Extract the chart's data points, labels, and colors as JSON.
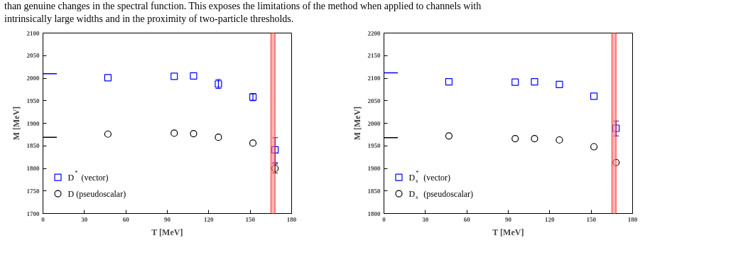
{
  "chart_data": [
    {
      "type": "scatter",
      "annotations": [
        "than genuine changes in the spectral function. This exposes the limitations of the method when applied to channels with",
        "intrinsically large widths and in the proximity of two-particle thresholds."
      ],
      "xlabel": "T [MeV]",
      "ylabel": "M [MeV]",
      "xlim": [
        0,
        180
      ],
      "ylim": [
        1700,
        2100
      ],
      "xticks": [
        0,
        30,
        60,
        90,
        120,
        150,
        180
      ],
      "yticks": [
        1700,
        1750,
        1800,
        1850,
        1900,
        1950,
        2000,
        2050,
        2100
      ],
      "grid": false,
      "legend": "bottom left",
      "bands": [
        {
          "axis": "x",
          "from": 165,
          "to": 168,
          "color": "#ff8080"
        }
      ],
      "series": [
        {
          "name": "D$^{*}$ (vector)",
          "type": "scatter",
          "marker": "square",
          "color": "#0000ff",
          "x": [
            47,
            95,
            109,
            127,
            152,
            168
          ],
          "values": [
            2001,
            2004,
            2005,
            1987,
            1958,
            1841
          ],
          "errors": [
            null,
            null,
            null,
            10,
            8,
            [
              1813,
              1868
            ]
          ]
        },
        {
          "name": "D (pseudoscalar)",
          "type": "scatter",
          "marker": "circle",
          "color": "#000000",
          "x": [
            47,
            95,
            109,
            127,
            152,
            168
          ],
          "values": [
            1876,
            1878,
            1877,
            1869,
            1856,
            1800
          ],
          "errors": [
            null,
            null,
            null,
            null,
            null,
            10
          ]
        },
        {
          "type": "line",
          "color": "#0000ff",
          "x": [
            0,
            10
          ],
          "values": [
            2010,
            2010
          ]
        },
        {
          "type": "line",
          "color": "#000000",
          "x": [
            0,
            10
          ],
          "values": [
            1869,
            1869
          ]
        }
      ]
    },
    {
      "type": "scatter",
      "xlabel": "T [MeV]",
      "ylabel": "M [MeV]",
      "xlim": [
        0,
        180
      ],
      "ylim": [
        1800,
        2200
      ],
      "xticks": [
        0,
        30,
        60,
        90,
        120,
        150,
        180
      ],
      "yticks": [
        1800,
        1850,
        1900,
        1950,
        2000,
        2050,
        2100,
        2150,
        2200
      ],
      "grid": false,
      "legend": "bottom left",
      "bands": [
        {
          "axis": "x",
          "from": 165,
          "to": 168,
          "color": "#ff8080"
        }
      ],
      "series": [
        {
          "name": "D$_{s}$$^{*}$ (vector)",
          "type": "scatter",
          "marker": "square",
          "color": "#0000ff",
          "x": [
            47,
            95,
            109,
            127,
            152,
            168
          ],
          "values": [
            2092,
            2091,
            2092,
            2086,
            2060,
            1989
          ],
          "errors": [
            null,
            null,
            null,
            null,
            null,
            [
              1972,
              2005
            ]
          ]
        },
        {
          "name": "D$_{s}$ (pseudoscalar)",
          "type": "scatter",
          "marker": "circle",
          "color": "#000000",
          "x": [
            47,
            95,
            109,
            127,
            152,
            168
          ],
          "values": [
            1972,
            1966,
            1966,
            1963,
            1948,
            1913
          ],
          "errors": [
            null,
            null,
            null,
            null,
            null,
            null
          ]
        },
        {
          "type": "line",
          "color": "#0000ff",
          "x": [
            0,
            10
          ],
          "values": [
            2112,
            2112
          ]
        },
        {
          "type": "line",
          "color": "#000000",
          "x": [
            0,
            10
          ],
          "values": [
            1968,
            1968
          ]
        }
      ]
    }
  ]
}
